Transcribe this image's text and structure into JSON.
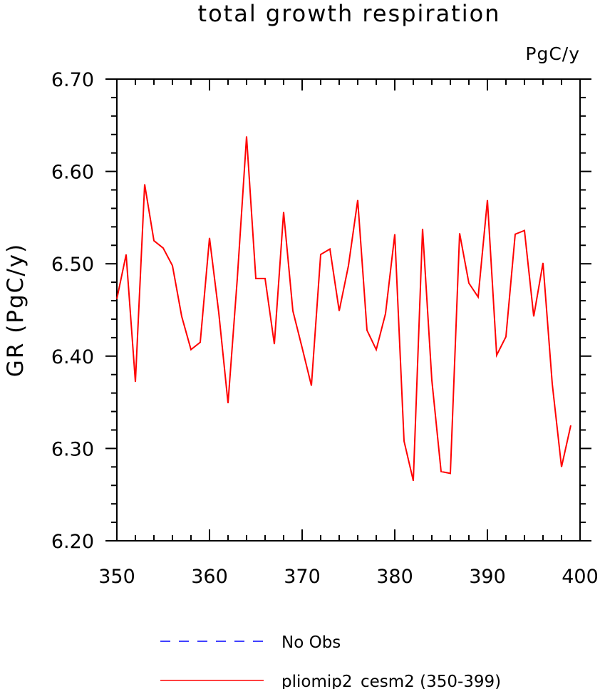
{
  "chart_data": {
    "type": "line",
    "title": "total growth respiration",
    "units_label": "PgC/y",
    "ylabel": "GR  (PgC/y)",
    "xlabel": "",
    "xlim": [
      350,
      400
    ],
    "ylim": [
      6.2,
      6.7
    ],
    "x_ticks": [
      "350",
      "360",
      "370",
      "380",
      "390",
      "400"
    ],
    "y_ticks": [
      "6.20",
      "6.30",
      "6.40",
      "6.50",
      "6.60",
      "6.70"
    ],
    "grid": false,
    "legend_position": "bottom",
    "series": [
      {
        "name": "No Obs",
        "style": "dashed",
        "color": "#0000ff",
        "x": [],
        "y": []
      },
      {
        "name": "pliomip2_cesm2 (350-399)",
        "style": "solid",
        "color": "#ff0000",
        "x": [
          350,
          351,
          352,
          353,
          354,
          355,
          356,
          357,
          358,
          359,
          360,
          361,
          362,
          363,
          364,
          365,
          366,
          367,
          368,
          369,
          370,
          371,
          372,
          373,
          374,
          375,
          376,
          377,
          378,
          379,
          380,
          381,
          382,
          383,
          384,
          385,
          386,
          387,
          388,
          389,
          390,
          391,
          392,
          393,
          394,
          395,
          396,
          397,
          398,
          399
        ],
        "y": [
          6.462,
          6.51,
          6.372,
          6.586,
          6.525,
          6.517,
          6.498,
          6.443,
          6.407,
          6.415,
          6.528,
          6.447,
          6.349,
          6.484,
          6.638,
          6.484,
          6.484,
          6.413,
          6.556,
          6.449,
          6.409,
          6.368,
          6.51,
          6.516,
          6.449,
          6.498,
          6.569,
          6.428,
          6.407,
          6.446,
          6.532,
          6.308,
          6.265,
          6.538,
          6.374,
          6.275,
          6.273,
          6.533,
          6.479,
          6.464,
          6.569,
          6.401,
          6.421,
          6.532,
          6.536,
          6.443,
          6.501,
          6.37,
          6.28,
          6.325
        ]
      }
    ]
  }
}
